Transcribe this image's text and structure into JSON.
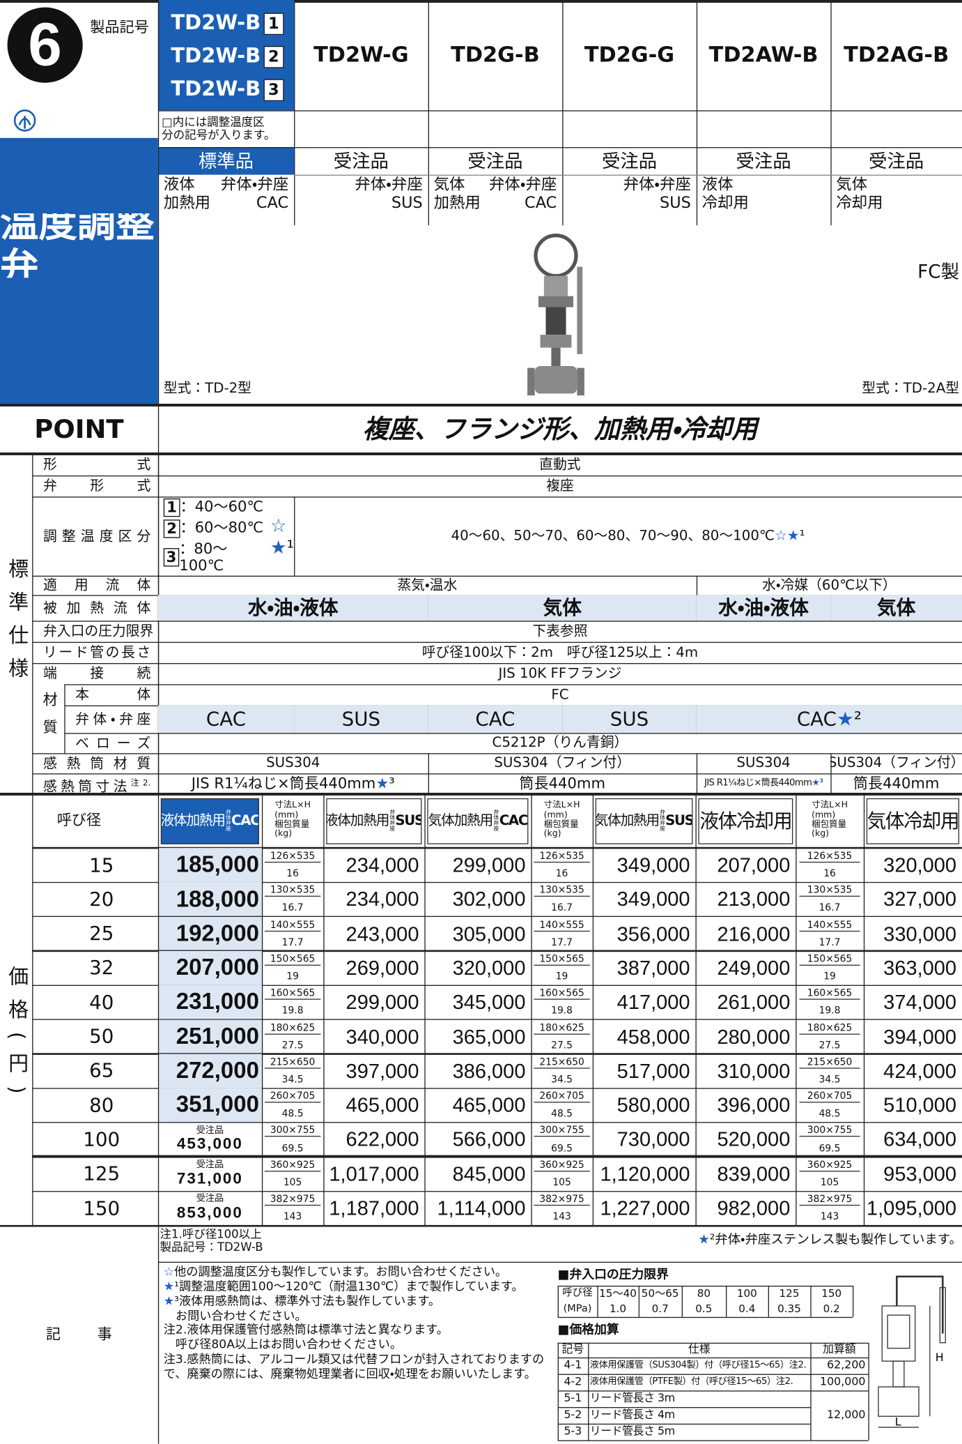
{
  "header": {
    "number": "6",
    "product_code_label": "製品記号",
    "title": "温度調整弁",
    "first_model": {
      "name": "TD2W-B",
      "boxes": [
        "1",
        "2",
        "3"
      ]
    },
    "models": [
      "TD2W-G",
      "TD2G-B",
      "TD2G-G",
      "TD2AW-B",
      "TD2AG-B"
    ],
    "note": "□内には調整温度区\n分の記号が入ります。",
    "status": [
      "標準品",
      "受注品",
      "受注品",
      "受注品",
      "受注品",
      "受注品"
    ],
    "descriptions": [
      {
        "left": "液体\n加熱用",
        "right": "弁体・弁座\nCAC"
      },
      {
        "right": "弁体・弁座\nSUS"
      },
      {
        "left": "気体\n加熱用",
        "right": "弁体・弁座\nCAC"
      },
      {
        "right": "弁体・弁座\nSUS"
      },
      {
        "left": "液体\n冷却用"
      },
      {
        "left": "気体\n冷却用"
      }
    ],
    "fc_note": "FC製",
    "type_left": "型式：TD-2型",
    "type_right": "型式：TD-2A型"
  },
  "point": {
    "label": "POINT",
    "text": "複座、フランジ形、加熱用・冷却用"
  },
  "spec": {
    "section_label": "標準仕様",
    "material_label": "材質",
    "rows": [
      {
        "label": "形式",
        "cells": [
          {
            "text": "直動式",
            "span": 6
          }
        ]
      },
      {
        "label": "弁形式",
        "cells": [
          {
            "text": "複座",
            "span": 6
          }
        ]
      },
      {
        "label": "調整温度区分",
        "cells": [
          {
            "options": [
              {
                "box": "1",
                "text": "：40〜60℃"
              },
              {
                "box": "2",
                "text": "：60〜80℃"
              },
              {
                "box": "3",
                "text": "：80〜100℃"
              }
            ],
            "stars": "☆\n★¹",
            "span": 1
          },
          {
            "text": "40〜60、50〜70、60〜80、70〜90、80〜100℃ ☆ ★¹",
            "span": 5
          }
        ]
      },
      {
        "label": "適用流体",
        "cells": [
          {
            "text": "蒸気・温水",
            "span": 4
          },
          {
            "text": "水・冷媒（60℃以下）",
            "span": 2
          }
        ]
      },
      {
        "label": "被加熱流体",
        "cells": [
          {
            "text": "水・油・液体",
            "span": 2
          },
          {
            "text": "気体",
            "span": 2
          },
          {
            "text": "水・油・液体",
            "span": 1
          },
          {
            "text": "気体",
            "span": 1
          }
        ]
      },
      {
        "label": "弁入口の圧力限界",
        "cells": [
          {
            "text": "下表参照",
            "span": 6
          }
        ]
      },
      {
        "label": "リード管の長さ",
        "cells": [
          {
            "text": "呼び径100以下：2m　呼び径125以上：4m",
            "span": 6
          }
        ]
      },
      {
        "label": "端接続",
        "cells": [
          {
            "text": "JIS 10K FFフランジ",
            "span": 6
          }
        ]
      },
      {
        "label": "本体",
        "cells": [
          {
            "text": "FC",
            "span": 6
          }
        ]
      },
      {
        "label": "弁体・弁座",
        "cells": [
          {
            "text": "CAC",
            "span": 1
          },
          {
            "text": "SUS",
            "span": 1
          },
          {
            "text": "CAC",
            "span": 1
          },
          {
            "text": "SUS",
            "span": 1
          },
          {
            "text": "CAC★²",
            "span": 2
          }
        ]
      },
      {
        "label": "ベローズ",
        "cells": [
          {
            "text": "C5212P（りん青銅）",
            "span": 6
          }
        ]
      },
      {
        "label": "感熱筒材質",
        "cells": [
          {
            "text": "SUS304",
            "span": 2
          },
          {
            "text": "SUS304（フィン付）",
            "span": 2
          },
          {
            "text": "SUS304",
            "span": 1
          },
          {
            "text": "SUS304（フィン付）",
            "span": 1
          }
        ]
      },
      {
        "label": "感熱筒寸法",
        "label_note": "注2.",
        "cells": [
          {
            "text": "JIS R1¼ねじ×筒長440mm★³",
            "span": 2
          },
          {
            "text": "筒長440mm",
            "span": 2
          },
          {
            "text": "JIS R1¼ねじ×筒長440mm★³",
            "span": 1
          },
          {
            "text": "筒長440mm",
            "span": 1
          }
        ]
      }
    ]
  },
  "price": {
    "section_label": "価格(円)",
    "size_label": "呼び径",
    "dims_header": "寸法L×H\n(mm)\n梱包質量\n(kg)",
    "headers": [
      {
        "main": "液体加熱用",
        "sub": "弁体\n弁座",
        "tail": "CAC"
      },
      {
        "main": "液体加熱用",
        "sub": "弁体\n弁座",
        "tail": "SUS"
      },
      {
        "main": "気体加熱用",
        "sub": "弁体\n弁座",
        "tail": "CAC"
      },
      {
        "main": "気体加熱用",
        "sub": "弁体\n弁座",
        "tail": "SUS"
      },
      {
        "main": "液体冷却用"
      },
      {
        "main": "気体冷却用"
      }
    ],
    "rows": [
      {
        "size": "15",
        "prices": [
          "185,000",
          "234,000",
          "299,000",
          "349,000",
          "207,000",
          "320,000"
        ],
        "dims": "126×535",
        "weight": "16"
      },
      {
        "size": "20",
        "prices": [
          "188,000",
          "234,000",
          "302,000",
          "349,000",
          "213,000",
          "327,000"
        ],
        "dims": "130×535",
        "weight": "16.7"
      },
      {
        "size": "25",
        "prices": [
          "192,000",
          "243,000",
          "305,000",
          "356,000",
          "216,000",
          "330,000"
        ],
        "dims": "140×555",
        "weight": "17.7"
      },
      {
        "size": "32",
        "prices": [
          "207,000",
          "269,000",
          "320,000",
          "387,000",
          "249,000",
          "363,000"
        ],
        "dims": "150×565",
        "weight": "19"
      },
      {
        "size": "40",
        "prices": [
          "231,000",
          "299,000",
          "345,000",
          "417,000",
          "261,000",
          "374,000"
        ],
        "dims": "160×565",
        "weight": "19.8"
      },
      {
        "size": "50",
        "prices": [
          "251,000",
          "340,000",
          "365,000",
          "458,000",
          "280,000",
          "394,000"
        ],
        "dims": "180×625",
        "weight": "27.5"
      },
      {
        "size": "65",
        "prices": [
          "272,000",
          "397,000",
          "386,000",
          "517,000",
          "310,000",
          "424,000"
        ],
        "dims": "215×650",
        "weight": "34.5"
      },
      {
        "size": "80",
        "prices": [
          "351,000",
          "465,000",
          "465,000",
          "580,000",
          "396,000",
          "510,000"
        ],
        "dims": "260×705",
        "weight": "48.5"
      },
      {
        "size": "100",
        "order_note": "受注品",
        "prices": [
          "453,000",
          "622,000",
          "566,000",
          "730,000",
          "520,000",
          "634,000"
        ],
        "dims": "300×755",
        "weight": "69.5"
      },
      {
        "size": "125",
        "order_note": "受注品",
        "prices": [
          "731,000",
          "1,017,000",
          "845,000",
          "1,120,000",
          "839,000",
          "953,000"
        ],
        "dims": "360×925",
        "weight": "105"
      },
      {
        "size": "150",
        "order_note": "受注品",
        "prices": [
          "853,000",
          "1,187,000",
          "1,114,000",
          "1,227,000",
          "982,000",
          "1,095,000"
        ],
        "dims": "382×975",
        "weight": "143"
      }
    ],
    "footnote": "注1.呼び径100以上\n製品記号：TD2W-B",
    "star_note": "★²弁体・弁座ステンレス製も製作しています。"
  },
  "notes": {
    "label": "記事",
    "items": [
      "☆他の調整温度区分も製作しています。お問い合わせください。",
      "★¹調整温度範囲100〜120℃（耐温130℃）まで製作しています。",
      "★³液体用感熱筒は、標準外寸法も製作しています。\n　お問い合わせください。",
      "注2.液体用保護管付感熱筒は標準寸法と異なります。\n　呼び径80A以上はお問い合わせください。",
      "注3.感熱筒には、アルコール類又は代替フロンが封入されておりますので、廃棄の際には、廃棄物処理業者に回収・処理をお願いいたします。"
    ]
  },
  "pressure": {
    "heading": "■弁入口の圧力限界",
    "size_label": "呼び径",
    "unit_label": "(MPa)",
    "sizes": [
      "15〜40",
      "50〜65",
      "80",
      "100",
      "125",
      "150"
    ],
    "values": [
      "1.0",
      "0.7",
      "0.5",
      "0.4",
      "0.35",
      "0.2"
    ]
  },
  "additions": {
    "heading": "■価格加算",
    "columns": [
      "記号",
      "仕様",
      "加算額"
    ],
    "rows": [
      {
        "code": "4-1",
        "spec": "液体用保護管（SUS304製）付（呼び径15〜65）注2.",
        "amount": "62,200"
      },
      {
        "code": "4-2",
        "spec": "液体用保護管（PTFE製）付（呼び径15〜65）注2.",
        "amount": "100,000"
      },
      {
        "code": "5-1",
        "spec": "リード管長さ 3m"
      },
      {
        "code": "5-2",
        "spec": "リード管長さ 4m"
      },
      {
        "code": "5-3",
        "spec": "リード管長さ 5m"
      }
    ],
    "lead_amount": "12,000"
  },
  "diagram": {
    "h": "H",
    "l": "L"
  }
}
